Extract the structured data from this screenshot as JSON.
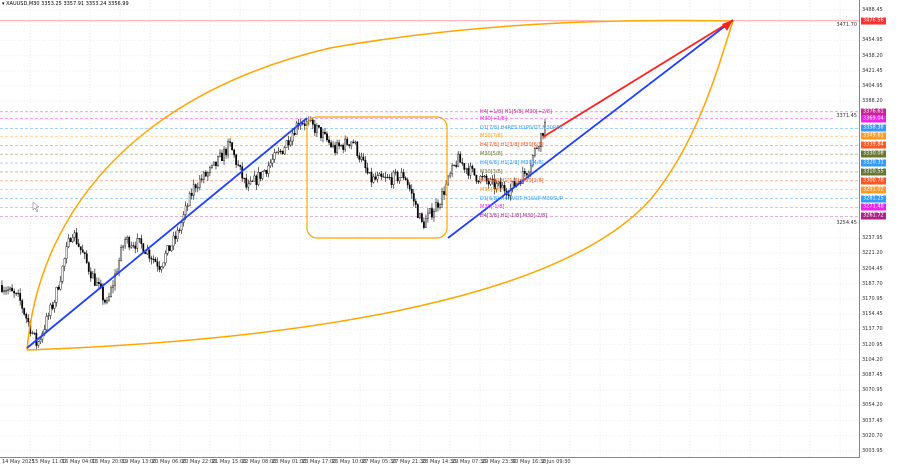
{
  "header": {
    "symbol": "XAUUSD,M30",
    "ohlc": "3353.25 3357.91 3353.24 3356.99",
    "dropdown_icon": "triangle-down-icon"
  },
  "price_axis": {
    "labels": [
      "3488.45",
      "3471.70",
      "3454.95",
      "3438.20",
      "3421.45",
      "3404.95",
      "3388.20",
      "3371.45",
      "3254.45",
      "3237.95",
      "3221.20",
      "3204.45",
      "3187.70",
      "3170.95",
      "3154.45",
      "3137.70",
      "3120.95",
      "3104.20",
      "3087.45",
      "3070.95",
      "3054.20",
      "3037.45",
      "3020.70",
      "3003.95"
    ]
  },
  "time_axis": {
    "labels": [
      "14 May 2025",
      "15 May 11:00",
      "16 May 04:00",
      "16 May 20:00",
      "19 May 13:00",
      "20 May 06:00",
      "20 May 22:00",
      "21 May 15:00",
      "22 May 08:00",
      "23 May 01:00",
      "23 May 17:00",
      "26 May 10:00",
      "27 May 05:30",
      "27 May 21:30",
      "28 May 14:30",
      "29 May 07:30",
      "29 May 23:30",
      "30 May 16:30",
      "2 Jun 09:30"
    ]
  },
  "levels": [
    {
      "price": "3476.56",
      "color": "#ff3030",
      "text": ""
    },
    {
      "price": "3376.61",
      "color": "#cc2299",
      "text": "H4[+1/8] H1[5/8] M30[+2/8]"
    },
    {
      "price": "3369.04",
      "color": "#ee22ee",
      "text": "M30[+1/8]"
    },
    {
      "price": "3358.38",
      "color": "#3399ff",
      "text": "D1[7/8] H4RES H1PIVOT M30RES"
    },
    {
      "price": "3349.61",
      "color": "#ff9922",
      "text": "M30[7/8]"
    },
    {
      "price": "3339.84",
      "color": "#ff5522",
      "text": "H4[7/8] H1[3/8] M30[6/8]"
    },
    {
      "price": "3330.08",
      "color": "#667733",
      "text": "M30[5/8]"
    },
    {
      "price": "3320.31",
      "color": "#3399ff",
      "text": "H4[6/8] H1[2/8] M30[4/8]"
    },
    {
      "price": "3310.55",
      "color": "#667733",
      "text": "M30[3/8]"
    },
    {
      "price": "3300.78",
      "color": "#ff5522",
      "text": "H4[5/8] H1[1/8] M30[2/8]"
    },
    {
      "price": "3291.02",
      "color": "#ff9922",
      "text": "M30[1/8]"
    },
    {
      "price": "3281.25",
      "color": "#3399ff",
      "text": "D1[6/8] H4PIVOT H1SUP M30SUP"
    },
    {
      "price": "3271.48",
      "color": "#ee22ee",
      "text": "M30[-1/8]"
    },
    {
      "price": "3261.72",
      "color": "#aa2288",
      "text": "H4[3/8] H1[-1/8] M30[-2/8]"
    }
  ],
  "price_path": [
    3186,
    3170,
    3120,
    3170,
    3247,
    3203,
    3164,
    3236,
    3230,
    3208,
    3241,
    3296,
    3313,
    3340,
    3291,
    3313,
    3335,
    3368,
    3357,
    3335,
    3346,
    3302,
    3302,
    3307,
    3252,
    3280,
    3324,
    3307,
    3296,
    3291,
    3313,
    3362
  ],
  "colors": {
    "arc": "#ffa500",
    "trend": "#1f3fff",
    "projection": "#ff2020",
    "box": "#ffa500",
    "candle": "#000000"
  }
}
